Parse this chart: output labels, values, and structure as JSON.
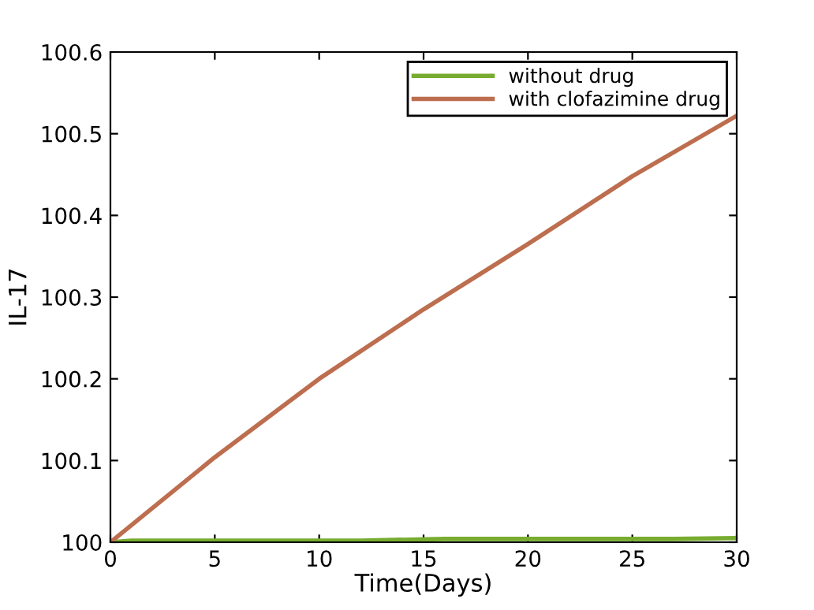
{
  "chart_data": {
    "type": "line",
    "xlabel": "Time(Days)",
    "ylabel": "IL-17",
    "xlim": [
      0,
      30
    ],
    "ylim": [
      100,
      100.6
    ],
    "xticks": [
      0,
      5,
      10,
      15,
      20,
      25,
      30
    ],
    "yticks": [
      {
        "value": 100,
        "label": "100"
      },
      {
        "value": 100.1,
        "label": "100.1"
      },
      {
        "value": 100.2,
        "label": "100.2"
      },
      {
        "value": 100.3,
        "label": "100.3"
      },
      {
        "value": 100.4,
        "label": "100.4"
      },
      {
        "value": 100.5,
        "label": "100.5"
      },
      {
        "value": 100.6,
        "label": "100.6"
      }
    ],
    "series": [
      {
        "name": "without drug",
        "color": "#77ac30",
        "x": [
          0,
          1,
          12,
          16,
          27,
          30
        ],
        "values": [
          100,
          100.002,
          100.002,
          100.004,
          100.004,
          100.005
        ]
      },
      {
        "name": "with clofazimine drug",
        "color": "#bd6e4f",
        "x": [
          0,
          5,
          10,
          15,
          20,
          25,
          30
        ],
        "values": [
          100,
          100.104,
          100.2,
          100.285,
          100.365,
          100.448,
          100.522
        ]
      }
    ],
    "legend": "top right",
    "grid": false,
    "marker": "none",
    "line_style": "solid"
  }
}
